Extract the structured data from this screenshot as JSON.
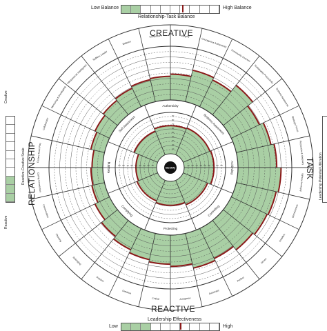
{
  "chart_data": {
    "type": "polar-bar",
    "title": "",
    "top_scale": {
      "low_label": "Low Balance",
      "high_label": "High Balance",
      "caption": "Relationship-Task Balance",
      "ticks": [
        "10",
        "20",
        "30",
        "40",
        "50",
        "60",
        "70",
        "80",
        "90"
      ],
      "value": 62
    },
    "bottom_scale": {
      "low_label": "Low",
      "high_label": "High",
      "caption": "Leadership Effectiveness",
      "ticks": [
        "10",
        "20",
        "30",
        "40",
        "50",
        "60",
        "70",
        "80",
        "90"
      ],
      "value": 60
    },
    "left_scale": {
      "top_label": "Creative",
      "bottom_label": "Reactive",
      "caption": "Reactive-Creative Scale"
    },
    "right_scale": {
      "caption": "Leadership Potential Utilization"
    },
    "quadrant_labels": {
      "top": "CREATIVE",
      "bottom": "REACTIVE",
      "left": "RELATIONSHIP",
      "right": "TASK"
    },
    "center_label": "Identify",
    "ring_ticks": [
      "10",
      "20",
      "30",
      "40",
      "50",
      "60",
      "70",
      "80",
      "90"
    ],
    "outer_dimensions": [
      {
        "label": "Integrity",
        "value": 48
      },
      {
        "label": "Courageous Authenticity",
        "value": 60
      },
      {
        "label": "Community Concern",
        "value": 55
      },
      {
        "label": "Sustainable Productivity",
        "value": 70
      },
      {
        "label": "Systems Awareness",
        "value": 58
      },
      {
        "label": "Strategic Focus",
        "value": 66
      },
      {
        "label": "Purposeful & Visionary",
        "value": 72
      },
      {
        "label": "Achieves Results",
        "value": 80
      },
      {
        "label": "Decisiveness",
        "value": 76
      },
      {
        "label": "Ambition",
        "value": 74
      },
      {
        "label": "Driven",
        "value": 70
      },
      {
        "label": "Perfect",
        "value": 62
      },
      {
        "label": "Autocratic",
        "value": 66
      },
      {
        "label": "Arrogance",
        "value": 58
      },
      {
        "label": "Critical",
        "value": 54
      },
      {
        "label": "Distance",
        "value": 50
      },
      {
        "label": "Passive",
        "value": 44
      },
      {
        "label": "Belonging",
        "value": 38
      },
      {
        "label": "Pleasing",
        "value": 30
      },
      {
        "label": "Conservative",
        "value": 24
      },
      {
        "label": "Caring Connection",
        "value": 22
      },
      {
        "label": "Fosters Team Play",
        "value": 20
      },
      {
        "label": "Collaborator",
        "value": 26
      },
      {
        "label": "Mentoring & Developing",
        "value": 30
      },
      {
        "label": "Interpersonal Intelligence",
        "value": 34
      },
      {
        "label": "Selfless Leader",
        "value": 38
      },
      {
        "label": "Balance",
        "value": 42
      },
      {
        "label": "Composure",
        "value": 44
      }
    ],
    "inner_dimensions": [
      {
        "label": "Authenticity",
        "value": 68
      },
      {
        "label": "Systems Awareness",
        "value": 70
      },
      {
        "label": "Achieving",
        "value": 72
      },
      {
        "label": "Controlling",
        "value": 64
      },
      {
        "label": "Protecting",
        "value": 58
      },
      {
        "label": "Complying",
        "value": 54
      },
      {
        "label": "Relating",
        "value": 50
      },
      {
        "label": "Self-Awareness",
        "value": 62
      }
    ]
  }
}
